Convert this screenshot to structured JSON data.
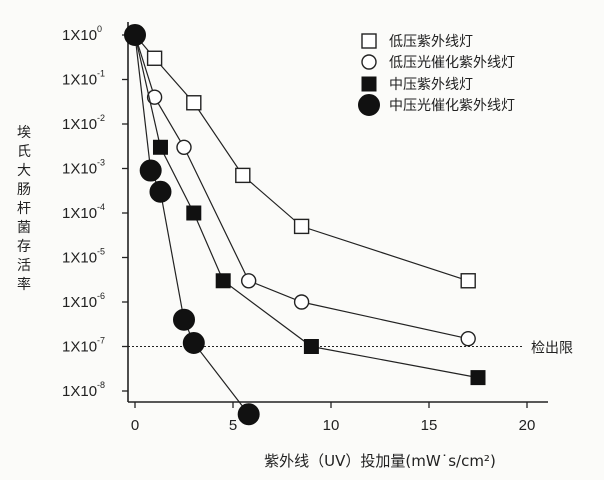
{
  "chart_data": {
    "type": "scatter",
    "ylabel_chars": [
      "埃",
      "氏",
      "大",
      "肠",
      "杆",
      "菌",
      "存",
      "活",
      "率"
    ],
    "xlabel": "紫外线（UV）投加量(mW˙s/cm²)",
    "x_ticks": [
      "0",
      "5",
      "10",
      "15",
      "20"
    ],
    "y_ticks": [
      {
        "base": "1X10",
        "exp": "0"
      },
      {
        "base": "1X10",
        "exp": "-1"
      },
      {
        "base": "1X10",
        "exp": "-2"
      },
      {
        "base": "1X10",
        "exp": "-3"
      },
      {
        "base": "1X10",
        "exp": "-4"
      },
      {
        "base": "1X10",
        "exp": "-5"
      },
      {
        "base": "1X10",
        "exp": "-6"
      },
      {
        "base": "1X10",
        "exp": "-7"
      },
      {
        "base": "1X10",
        "exp": "-8"
      }
    ],
    "xlim": [
      0,
      20
    ],
    "ylim_log10": [
      -8.5,
      0.2
    ],
    "y_scale": "log",
    "legend_position": "top-right",
    "detection_limit": {
      "value": 1e-07,
      "label": "检出限"
    },
    "series": [
      {
        "name": "低压紫外线灯",
        "marker": "open-square",
        "line": true,
        "x": [
          0,
          1,
          3,
          5.5,
          8.5,
          17
        ],
        "y": [
          1,
          0.3,
          0.03,
          0.0007,
          5e-05,
          3e-06
        ]
      },
      {
        "name": "低压光催化紫外线灯",
        "marker": "open-circle",
        "line": true,
        "x": [
          0,
          1,
          2.5,
          5.8,
          8.5,
          17
        ],
        "y": [
          1,
          0.04,
          0.003,
          3e-06,
          1e-06,
          1.5e-07
        ]
      },
      {
        "name": "中压紫外线灯",
        "marker": "filled-square",
        "line": true,
        "x": [
          0,
          1.3,
          3,
          4.5,
          9,
          17.5
        ],
        "y": [
          1,
          0.003,
          0.0001,
          3e-06,
          1e-07,
          2e-08
        ]
      },
      {
        "name": "中压光催化紫外线灯",
        "marker": "filled-circle",
        "line": true,
        "x": [
          0,
          0.8,
          1.3,
          2.5,
          3,
          5.8
        ],
        "y": [
          1,
          0.0009,
          0.0003,
          4e-07,
          1.2e-07,
          3e-09
        ]
      }
    ]
  }
}
